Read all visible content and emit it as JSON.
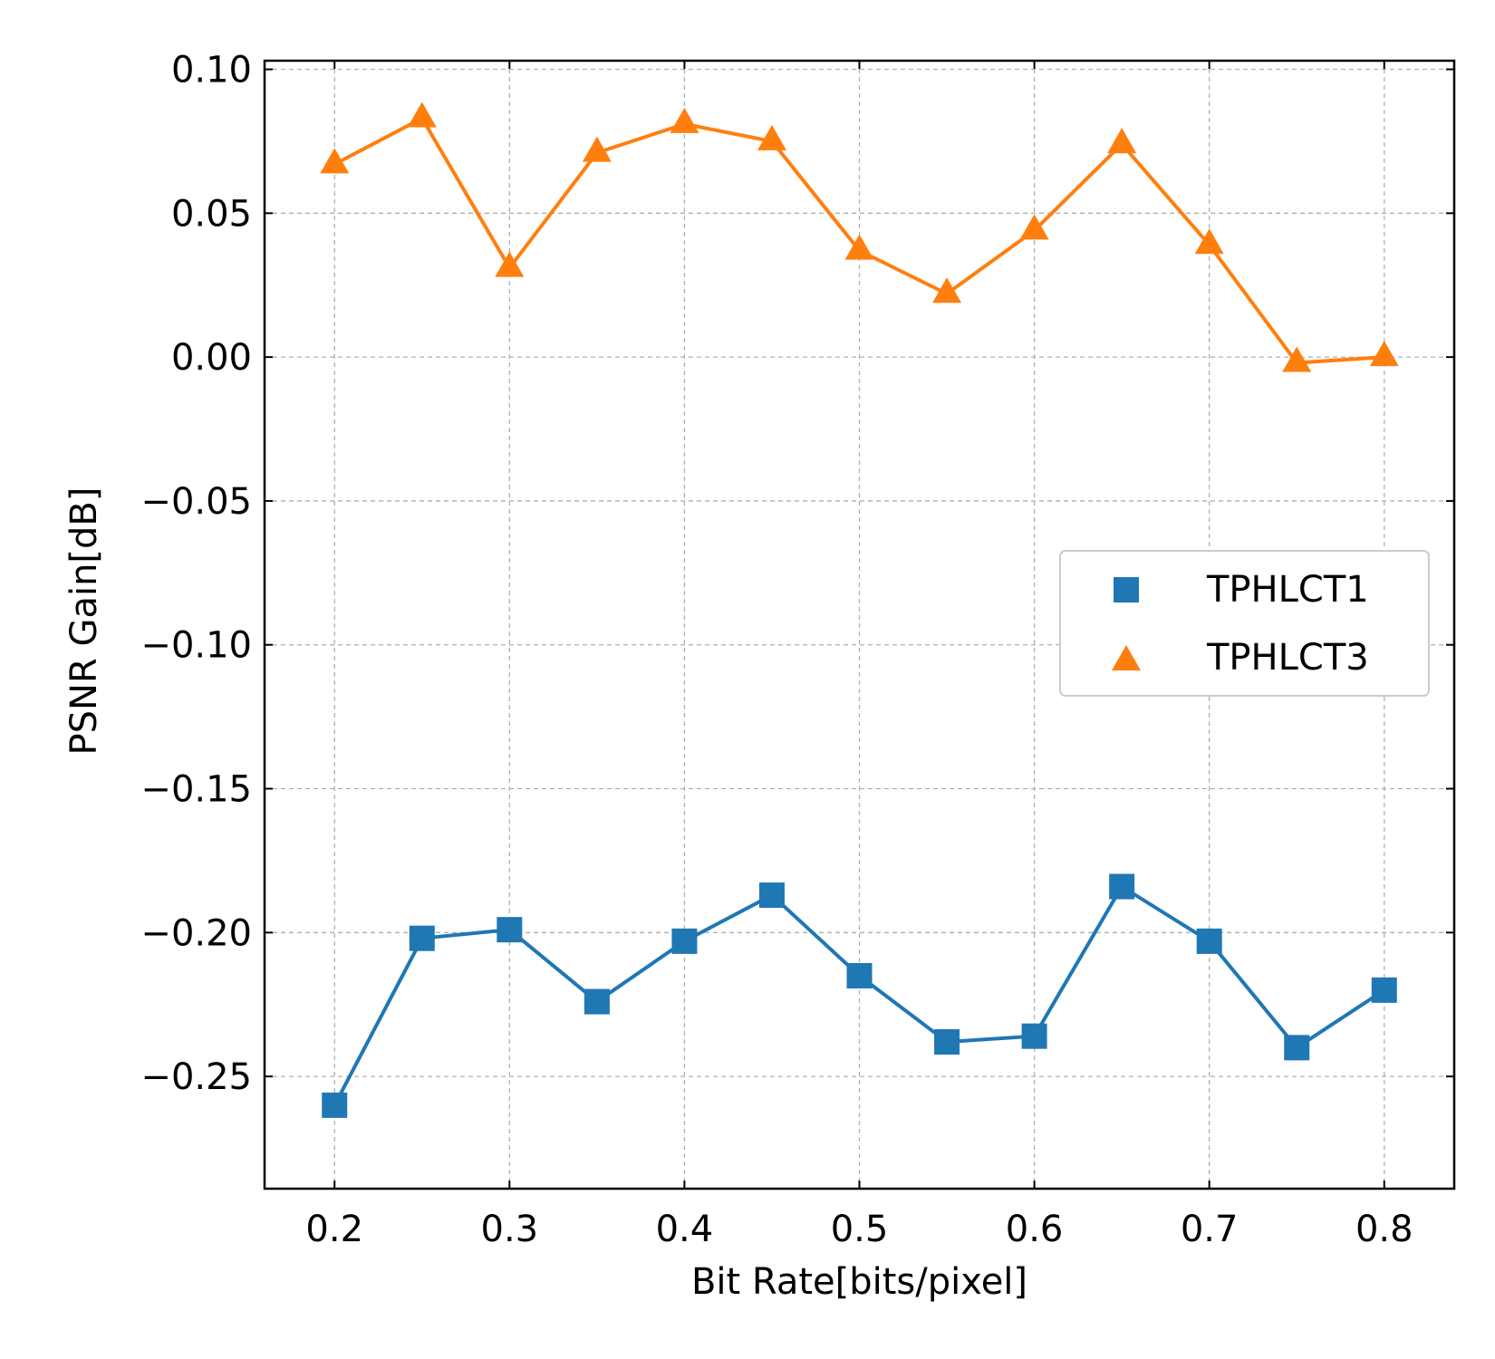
{
  "chart_data": {
    "type": "line",
    "title": "",
    "xlabel": "Bit Rate[bits/pixel]",
    "ylabel": "PSNR Gain[dB]",
    "xlim": [
      0.16,
      0.84
    ],
    "ylim": [
      -0.289,
      0.103
    ],
    "grid": true,
    "legend_position": "center-right",
    "x": [
      0.2,
      0.25,
      0.3,
      0.35,
      0.4,
      0.45,
      0.5,
      0.55,
      0.6,
      0.65,
      0.7,
      0.75,
      0.8
    ],
    "x_ticks": [
      {
        "value": 0.2,
        "label": "0.2"
      },
      {
        "value": 0.3,
        "label": "0.3"
      },
      {
        "value": 0.4,
        "label": "0.4"
      },
      {
        "value": 0.5,
        "label": "0.5"
      },
      {
        "value": 0.6,
        "label": "0.6"
      },
      {
        "value": 0.7,
        "label": "0.7"
      },
      {
        "value": 0.8,
        "label": "0.8"
      }
    ],
    "y_ticks": [
      {
        "value": 0.1,
        "label": "0.10"
      },
      {
        "value": 0.05,
        "label": "0.05"
      },
      {
        "value": 0.0,
        "label": "0.00"
      },
      {
        "value": -0.05,
        "label": "−0.05"
      },
      {
        "value": -0.1,
        "label": "−0.10"
      },
      {
        "value": -0.15,
        "label": "−0.15"
      },
      {
        "value": -0.2,
        "label": "−0.20"
      },
      {
        "value": -0.25,
        "label": "−0.25"
      }
    ],
    "series": [
      {
        "name": "TPHLCT1",
        "marker": "square",
        "color": "#1f77b4",
        "values": [
          -0.26,
          -0.202,
          -0.199,
          -0.224,
          -0.203,
          -0.187,
          -0.215,
          -0.238,
          -0.236,
          -0.184,
          -0.203,
          -0.24,
          -0.22
        ]
      },
      {
        "name": "TPHLCT3",
        "marker": "triangle",
        "color": "#ff7f0e",
        "values": [
          0.067,
          0.083,
          0.031,
          0.071,
          0.081,
          0.075,
          0.037,
          0.022,
          0.044,
          0.074,
          0.039,
          -0.002,
          0.0
        ]
      }
    ]
  }
}
